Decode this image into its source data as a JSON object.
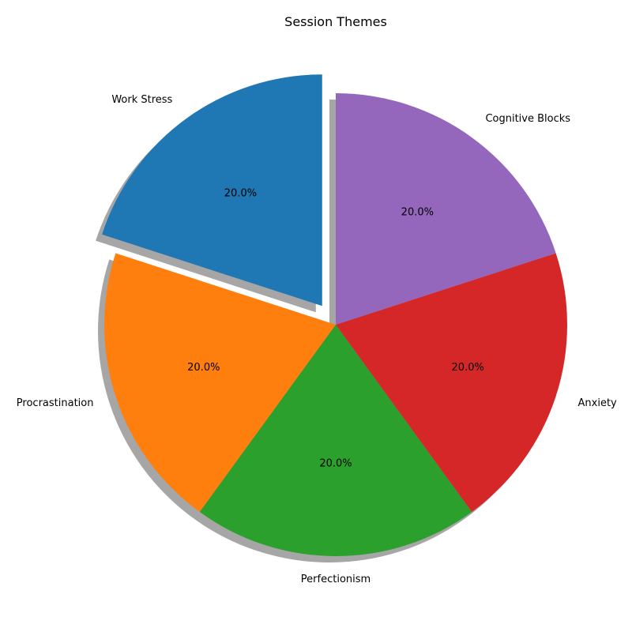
{
  "chart_data": {
    "type": "pie",
    "title": "Session Themes",
    "categories": [
      "Work Stress",
      "Procrastination",
      "Perfectionism",
      "Anxiety",
      "Cognitive Blocks"
    ],
    "values": [
      20,
      20,
      20,
      20,
      20
    ],
    "percent_labels": [
      "20.0%",
      "20.0%",
      "20.0%",
      "20.0%",
      "20.0%"
    ],
    "colors": [
      "#1f77b4",
      "#ff7f0e",
      "#2ca02c",
      "#d62728",
      "#9467bd"
    ],
    "exploded": [
      "Work Stress"
    ],
    "start_angle_deg": 90,
    "direction": "counterclockwise",
    "shadow": true
  }
}
